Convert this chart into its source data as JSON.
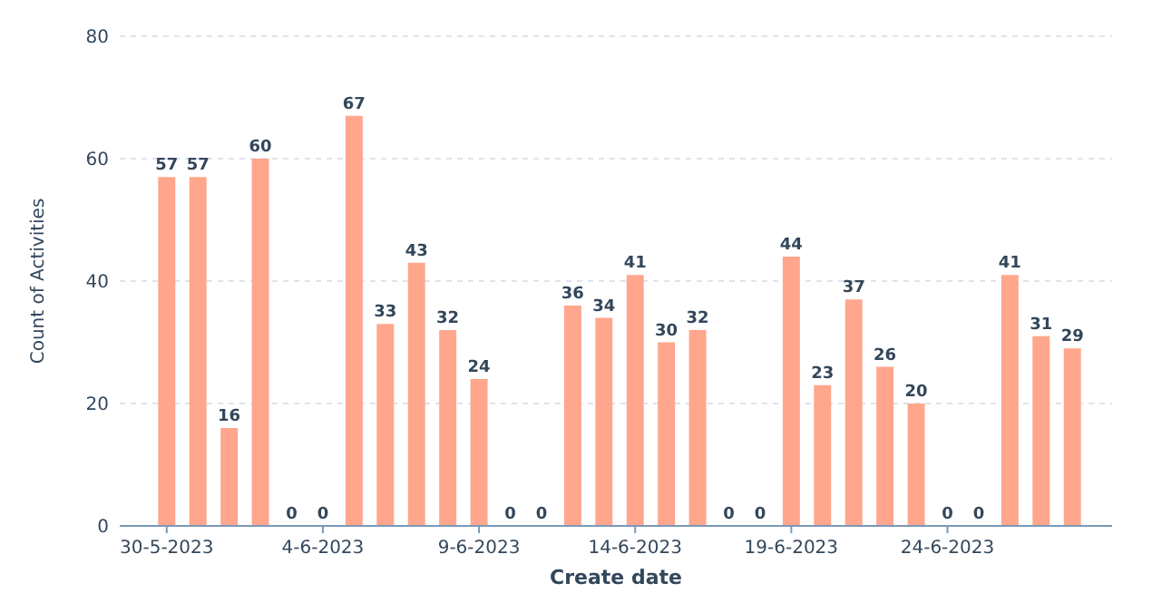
{
  "chart_data": {
    "type": "bar",
    "xlabel": "Create date",
    "ylabel": "Count of Activities",
    "categories": [
      "30-5-2023",
      null,
      null,
      null,
      null,
      "4-6-2023",
      null,
      null,
      null,
      null,
      "9-6-2023",
      null,
      null,
      null,
      null,
      "14-6-2023",
      null,
      null,
      null,
      null,
      "19-6-2023",
      null,
      null,
      null,
      null,
      "24-6-2023",
      null,
      null,
      null,
      null
    ],
    "values": [
      57,
      57,
      16,
      60,
      0,
      0,
      67,
      33,
      43,
      32,
      24,
      0,
      0,
      36,
      34,
      41,
      30,
      32,
      0,
      0,
      44,
      23,
      37,
      26,
      20,
      0,
      0,
      41,
      31,
      29
    ],
    "color": "#ffa68c",
    "ylim": [
      0,
      80
    ],
    "yticks": [
      0,
      20,
      40,
      60,
      80
    ],
    "grid": "y",
    "data_labels": true
  }
}
